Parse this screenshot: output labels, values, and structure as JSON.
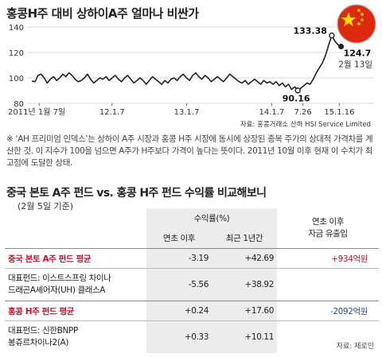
{
  "chart_data": {
    "type": "line",
    "title": "홍콩H주 대비 상하이A주 얼마나 비싼가",
    "xlabel": "",
    "ylabel": "",
    "ylim": [
      80,
      140
    ],
    "yticks": [
      80,
      100,
      120,
      140
    ],
    "grid": true,
    "xticks": [
      "2011년 1월 7일",
      "12.1.7",
      "13.1.7",
      "14.1.7",
      "7.26",
      "15.1.16"
    ],
    "line_color": "#222222",
    "series": [
      {
        "values": [
          97.5,
          97,
          102,
          103,
          100,
          96,
          99,
          101,
          98,
          100,
          103,
          101,
          104,
          102,
          99,
          97,
          98,
          100,
          103,
          99,
          96,
          98,
          100,
          99,
          101,
          98,
          100,
          102,
          99,
          97,
          100,
          102,
          99,
          96,
          98,
          100,
          98,
          95,
          98,
          101,
          99,
          97,
          95,
          98,
          96,
          99,
          100,
          98,
          101,
          103,
          100,
          98,
          102,
          104,
          101,
          99,
          102,
          100,
          97,
          99,
          101,
          99,
          97,
          100,
          103,
          101,
          99,
          97,
          96,
          98,
          95,
          97,
          99,
          97,
          95,
          98,
          96,
          97,
          95,
          97,
          94,
          96,
          93,
          95,
          91,
          93,
          90.16,
          92,
          94,
          96,
          95,
          99,
          104,
          108,
          112,
          118,
          126,
          133.38,
          129,
          126,
          124.7
        ]
      }
    ],
    "annotations": [
      {
        "label": "133.38",
        "value": 133.38
      },
      {
        "label": "124.7",
        "value": 124.7
      },
      {
        "label": "90.16",
        "value": 90.16
      },
      {
        "label": "2월 13일"
      }
    ]
  },
  "source1": "자료: 홍콩거래소 산하 HSI Service Limited",
  "note": "※ ‘AH 프리미엄 인덱스’는 상하이 A주 시장과 홍콩 H주 시장에 동시에 상장된 종목 주가의 상대적 가격차를 계산한 것. 이 지수가 100을 넘으면 A주가 H주보다 가격이 높다는 뜻이다. 2011년 10월 이후 현재 이 수치가 최고점에 도달한 상태.",
  "table": {
    "title": "중국 본토 A주 펀드 vs. 홍콩 H주 펀드 수익률 비교해보니",
    "subtitle": "(2월 5일 기준)",
    "unit_header": "수익률(%)",
    "col_since": "연초 이후",
    "col_1y": "최근 1년간",
    "col_flow1": "연초 이후",
    "col_flow2": "자금 유출입",
    "rows": [
      {
        "name": "중국 본토 A주 펀드 평균",
        "since": "-3.19",
        "year": "+42.69",
        "flow": "+934억원"
      },
      {
        "name1": "대표펀드: 이스트스프링 차이나",
        "name2": "드래곤A셰어자(UH) 클래스A",
        "since": "-5.56",
        "year": "+38.92",
        "flow": ""
      },
      {
        "name": "홍콩 H주 펀드 평균",
        "since": "+0.24",
        "year": "+17.60",
        "flow": "-2092억원"
      },
      {
        "name1": "대표펀드: 신한BNPP",
        "name2": "봉쥬르차이나2(A)",
        "since": "+0.33",
        "year": "+10.11",
        "flow": ""
      }
    ]
  },
  "source2": "자료: 제로인",
  "colors": {
    "accent_red": "#c8102e",
    "accent_blue": "#1f4e9c",
    "flag_red": "#de2910",
    "flag_yellow": "#ffde00",
    "row_shade": "#ececec"
  }
}
